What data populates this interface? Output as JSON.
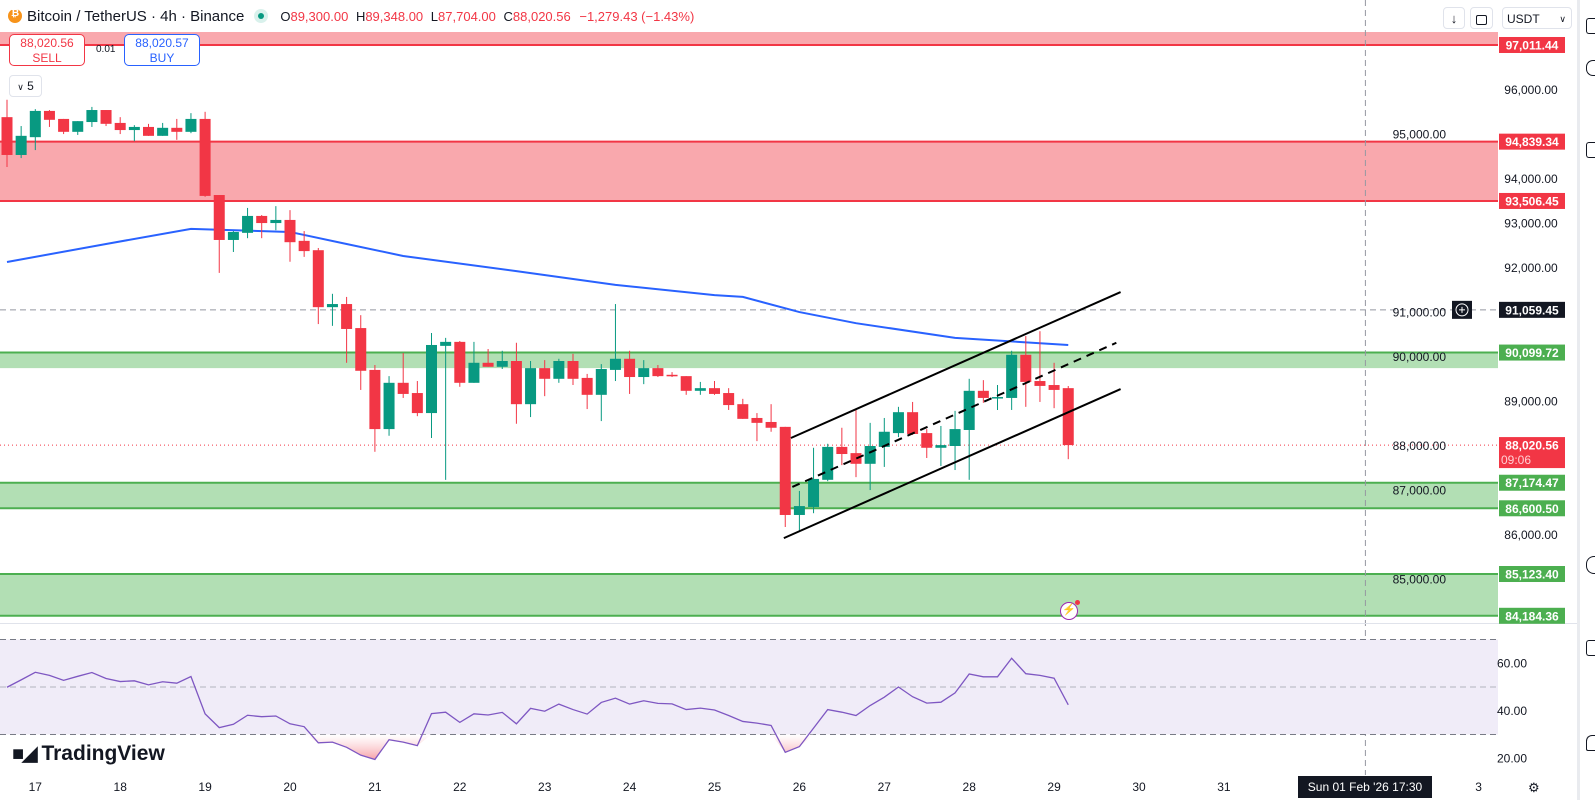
{
  "header": {
    "title": "Bitcoin / TetherUS · 4h · Binance",
    "o_label": "O",
    "o": "89,300.00",
    "h_label": "H",
    "h": "89,348.00",
    "l_label": "L",
    "l": "87,704.00",
    "c_label": "C",
    "c": "88,020.56",
    "change": "−1,279.43 (−1.43%)"
  },
  "trade": {
    "sell_price": "88,020.56",
    "sell_label": "SELL",
    "buy_price": "88,020.57",
    "buy_label": "BUY",
    "quantity": "0.01",
    "lots": "5",
    "lots_icon": "chevron-down-icon"
  },
  "toolbar": {
    "currency": "USDT",
    "download_icon": "arrow-down-icon",
    "fullscreen_icon": "fullscreen-icon"
  },
  "branding": {
    "name": "TradingView"
  },
  "crosshair": {
    "time_label": "Sun 01 Feb '26   17:30",
    "price_label": "91,059.45",
    "price": 91059.45,
    "index": 96
  },
  "colors": {
    "up": "#089981",
    "down": "#F23645",
    "ma": "#2962FF",
    "zone_green": "#4CAF50",
    "zone_red": "#F23645",
    "rsi": "#7E57C2"
  },
  "chart_data": [
    {
      "type": "candlestick",
      "symbol": "BTCUSDT",
      "ylim": [
        83700,
        97400
      ],
      "y_ticks": [
        "96,000.00",
        "95,000.00",
        "94,000.00",
        "93,000.00",
        "92,000.00",
        "91,000.00",
        "90,000.00",
        "89,000.00",
        "88,000.00",
        "87,000.00",
        "86,000.00",
        "85,000.00"
      ],
      "y_tick_values": [
        96000,
        95000,
        94000,
        93000,
        92000,
        91000,
        90000,
        89000,
        88000,
        87000,
        86000,
        85000
      ],
      "x_ticks": [
        {
          "label": "17",
          "i": 2
        },
        {
          "label": "18",
          "i": 8
        },
        {
          "label": "19",
          "i": 14
        },
        {
          "label": "20",
          "i": 20
        },
        {
          "label": "21",
          "i": 26
        },
        {
          "label": "22",
          "i": 32
        },
        {
          "label": "23",
          "i": 38
        },
        {
          "label": "24",
          "i": 44
        },
        {
          "label": "25",
          "i": 50
        },
        {
          "label": "26",
          "i": 56
        },
        {
          "label": "27",
          "i": 62
        },
        {
          "label": "28",
          "i": 68
        },
        {
          "label": "29",
          "i": 74
        },
        {
          "label": "30",
          "i": 80
        },
        {
          "label": "31",
          "i": 86
        },
        {
          "label": "3",
          "i": 104
        }
      ],
      "candles_ohlc": [
        [
          95390,
          95780,
          94270,
          94540
        ],
        [
          94540,
          95190,
          94470,
          94970
        ],
        [
          94940,
          95570,
          94650,
          95530
        ],
        [
          95530,
          95550,
          95170,
          95330
        ],
        [
          95350,
          95350,
          95010,
          95060
        ],
        [
          95060,
          95300,
          94990,
          95300
        ],
        [
          95280,
          95620,
          95170,
          95550
        ],
        [
          95550,
          95550,
          95190,
          95240
        ],
        [
          95260,
          95390,
          95010,
          95100
        ],
        [
          95100,
          95210,
          94850,
          95170
        ],
        [
          95170,
          95240,
          94970,
          94970
        ],
        [
          94970,
          95260,
          94970,
          95150
        ],
        [
          95150,
          95350,
          94880,
          95060
        ],
        [
          95060,
          95480,
          95030,
          95350
        ],
        [
          95350,
          95510,
          93600,
          93620
        ],
        [
          93640,
          93640,
          91890,
          92630
        ],
        [
          92630,
          92830,
          92360,
          92810
        ],
        [
          92790,
          93350,
          92670,
          93170
        ],
        [
          93170,
          93190,
          92670,
          93010
        ],
        [
          93010,
          93390,
          92850,
          93080
        ],
        [
          93080,
          93300,
          92140,
          92580
        ],
        [
          92610,
          92830,
          92250,
          92380
        ],
        [
          92400,
          92450,
          90740,
          91120
        ],
        [
          91120,
          91420,
          90700,
          91190
        ],
        [
          91190,
          91350,
          89870,
          90630
        ],
        [
          90650,
          90940,
          89260,
          89690
        ],
        [
          89710,
          89820,
          87870,
          88380
        ],
        [
          88380,
          89570,
          88230,
          89420
        ],
        [
          89420,
          90090,
          89080,
          89170
        ],
        [
          89190,
          89460,
          88670,
          88740
        ],
        [
          88740,
          90540,
          88180,
          90270
        ],
        [
          90250,
          90430,
          87240,
          90340
        ],
        [
          90340,
          90360,
          89330,
          89420
        ],
        [
          89420,
          90340,
          89420,
          89870
        ],
        [
          89870,
          90180,
          89780,
          89780
        ],
        [
          89780,
          90140,
          89730,
          89910
        ],
        [
          89910,
          90320,
          88500,
          88940
        ],
        [
          88940,
          89910,
          88650,
          89750
        ],
        [
          89750,
          89930,
          89120,
          89510
        ],
        [
          89510,
          89960,
          89420,
          89910
        ],
        [
          89910,
          90070,
          89370,
          89510
        ],
        [
          89530,
          89620,
          88830,
          89150
        ],
        [
          89150,
          89840,
          88560,
          89730
        ],
        [
          89710,
          91190,
          89460,
          89960
        ],
        [
          89960,
          90140,
          89170,
          89550
        ],
        [
          89550,
          89930,
          89390,
          89750
        ],
        [
          89750,
          89820,
          89550,
          89570
        ],
        [
          89600,
          89660,
          89550,
          89570
        ],
        [
          89570,
          89570,
          89150,
          89240
        ],
        [
          89240,
          89440,
          89150,
          89300
        ],
        [
          89300,
          89460,
          89150,
          89170
        ],
        [
          89190,
          89300,
          88810,
          88920
        ],
        [
          88940,
          89060,
          88610,
          88610
        ],
        [
          88630,
          88740,
          88110,
          88520
        ],
        [
          88540,
          88940,
          88320,
          88410
        ],
        [
          88430,
          88430,
          86180,
          86450
        ],
        [
          86450,
          86990,
          86070,
          86650
        ],
        [
          86630,
          87960,
          86490,
          87260
        ],
        [
          87240,
          88050,
          87210,
          87980
        ],
        [
          87980,
          88410,
          87570,
          87820
        ],
        [
          87840,
          88830,
          87300,
          87600
        ],
        [
          87600,
          88520,
          87010,
          88000
        ],
        [
          87980,
          88630,
          87530,
          88320
        ],
        [
          88290,
          88880,
          88200,
          88760
        ],
        [
          88760,
          88990,
          88250,
          88270
        ],
        [
          88290,
          88380,
          87730,
          87960
        ],
        [
          87960,
          88450,
          87550,
          88020
        ],
        [
          88000,
          88790,
          87460,
          88380
        ],
        [
          88360,
          89510,
          87240,
          89240
        ],
        [
          89240,
          89480,
          88970,
          89080
        ],
        [
          89080,
          89370,
          88810,
          89100
        ],
        [
          89080,
          90140,
          88810,
          90050
        ],
        [
          90050,
          90470,
          88880,
          89440
        ],
        [
          89460,
          90580,
          88990,
          89350
        ],
        [
          89370,
          89870,
          88850,
          89260
        ],
        [
          89300,
          89348,
          87704,
          88020.56
        ]
      ],
      "last_price": "88,020.56",
      "countdown": "09:06",
      "moving_average": [
        [
          0,
          92135
        ],
        [
          7,
          92540
        ],
        [
          13,
          92880
        ],
        [
          20,
          92810
        ],
        [
          24,
          92540
        ],
        [
          28,
          92270
        ],
        [
          36,
          91930
        ],
        [
          43,
          91620
        ],
        [
          50,
          91390
        ],
        [
          52,
          91350
        ],
        [
          56,
          91010
        ],
        [
          60,
          90760
        ],
        [
          67,
          90430
        ],
        [
          75,
          90270
        ]
      ],
      "zones": [
        {
          "color": "red",
          "low": 97011.44,
          "high": null,
          "low_label": "97,011.44"
        },
        {
          "color": "red",
          "low": 93506.45,
          "high": 94839.34,
          "low_label": "93,506.45",
          "high_label": "94,839.34"
        },
        {
          "color": "green",
          "low": 89750,
          "high": 90099.72,
          "high_label": "90,099.72"
        },
        {
          "color": "green",
          "low": 86600.5,
          "high": 87174.47,
          "low_label": "86,600.50",
          "high_label": "87,174.47"
        },
        {
          "color": "green",
          "low": 84184.36,
          "high": 85123.4,
          "low_label": "84,184.36",
          "high_label": "85,123.40"
        }
      ],
      "channel": {
        "upper": [
          [
            55.4,
            88180
          ],
          [
            78.7,
            91460
          ]
        ],
        "lower": [
          [
            54.9,
            85930
          ],
          [
            78.7,
            89280
          ]
        ],
        "middle_dashed": [
          [
            55.5,
            87080
          ],
          [
            78.4,
            90320
          ]
        ]
      }
    },
    {
      "type": "line",
      "indicator": "RSI",
      "ylim": [
        14,
        80
      ],
      "y_ticks": [
        "60.00",
        "40.00",
        "20.00"
      ],
      "y_tick_values": [
        60,
        40,
        20
      ],
      "bands": [
        30,
        50,
        70
      ],
      "values": [
        49.9,
        53,
        56.2,
        54.9,
        52.8,
        54.5,
        56.1,
        53.6,
        52.3,
        52.6,
        50.9,
        52.2,
        51.6,
        54.4,
        38.7,
        32.9,
        34.3,
        38.1,
        37.5,
        37.8,
        34.5,
        33.3,
        26.5,
        26.8,
        24.6,
        21.3,
        19.5,
        27.8,
        26.8,
        25.3,
        38.8,
        39.4,
        35.1,
        38.7,
        38.2,
        39.3,
        34.5,
        41.0,
        39.8,
        42.8,
        40.5,
        38.6,
        43.5,
        45.3,
        42.8,
        44.2,
        43.1,
        42.9,
        40.5,
        41.1,
        40.3,
        38.0,
        35.5,
        34.8,
        33.8,
        22.5,
        24.9,
        32.7,
        40.5,
        39.4,
        38.0,
        42.2,
        45.7,
        50.0,
        45.9,
        43.2,
        43.6,
        47.5,
        55.5,
        54.3,
        54.3,
        62.1,
        55.6,
        54.9,
        53.7,
        42.5
      ]
    }
  ]
}
